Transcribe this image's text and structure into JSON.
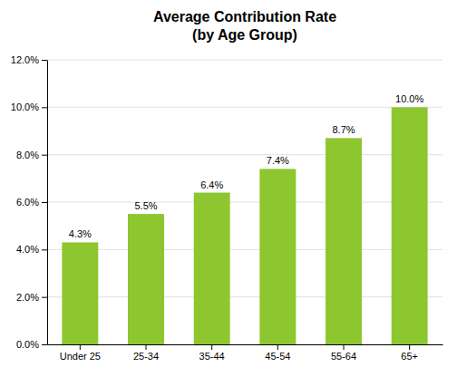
{
  "chart_data": {
    "type": "bar",
    "title": "Average Contribution Rate\n(by Age Group)",
    "categories": [
      "Under 25",
      "25-34",
      "35-44",
      "45-54",
      "55-64",
      "65+"
    ],
    "values": [
      0.043,
      0.055,
      0.064,
      0.074,
      0.087,
      0.1
    ],
    "value_labels": [
      "4.3%",
      "5.5%",
      "6.4%",
      "7.4%",
      "8.7%",
      "10.0%"
    ],
    "color": "#8ec630",
    "ylim": [
      0,
      0.12
    ],
    "yticks": [
      {
        "value": 0.0,
        "label": "0.0%"
      },
      {
        "value": 0.02,
        "label": "2.0%"
      },
      {
        "value": 0.04,
        "label": "4.0%"
      },
      {
        "value": 0.06,
        "label": "6.0%"
      },
      {
        "value": 0.08,
        "label": "8.0%"
      },
      {
        "value": 0.1,
        "label": "10.0%"
      },
      {
        "value": 0.12,
        "label": "12.0%"
      }
    ],
    "grid": true,
    "data_labels": true
  }
}
